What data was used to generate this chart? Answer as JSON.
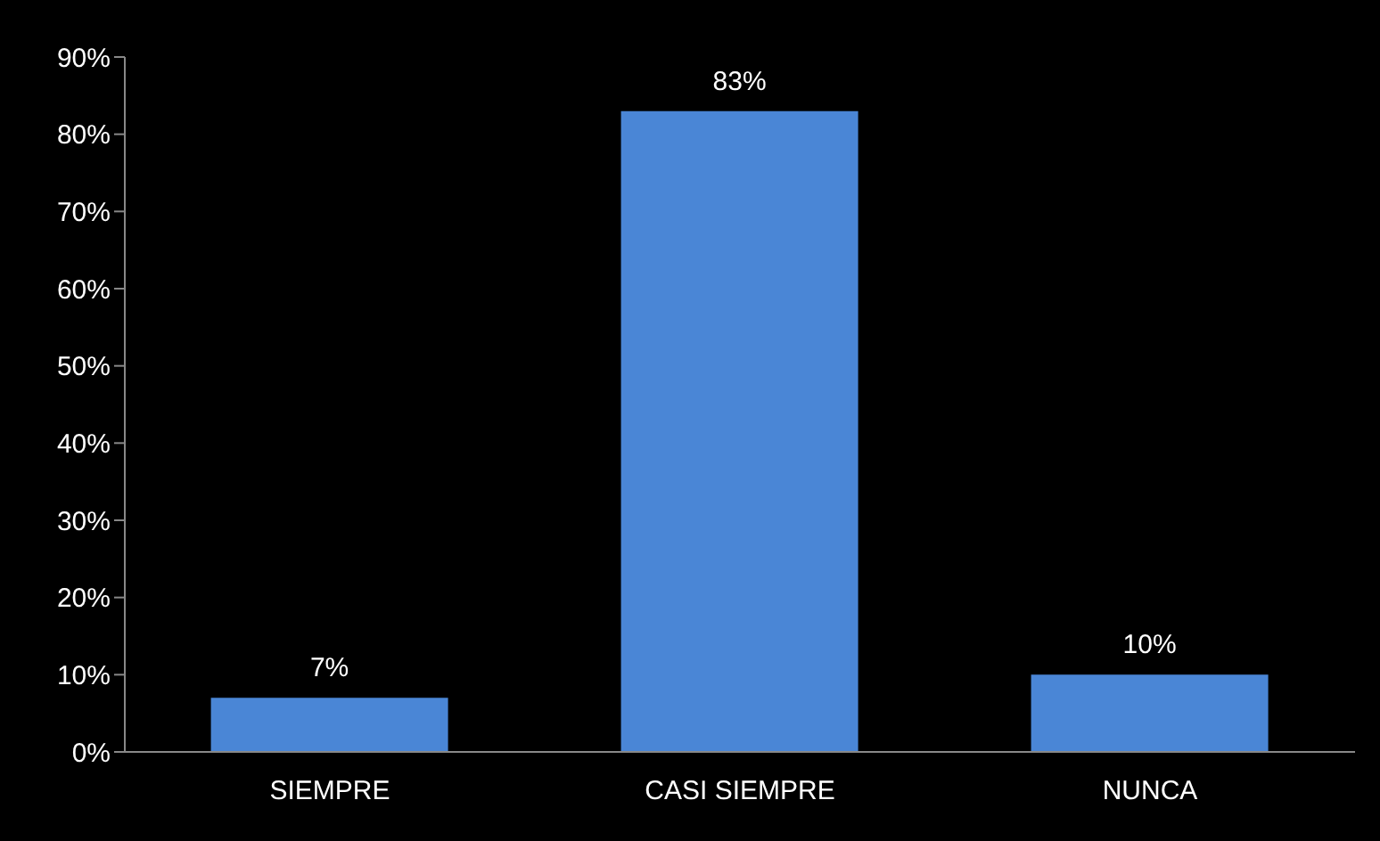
{
  "chart_data": {
    "type": "bar",
    "categories": [
      "SIEMPRE",
      "CASI SIEMPRE",
      "NUNCA"
    ],
    "values": [
      7,
      83,
      10
    ],
    "color": "#4a86d6",
    "value_labels": [
      "7%",
      "83%",
      "10%"
    ],
    "ylim": [
      0,
      90
    ],
    "yticks": [
      {
        "value": 0,
        "label": "0%"
      },
      {
        "value": 10,
        "label": "10%"
      },
      {
        "value": 20,
        "label": "20%"
      },
      {
        "value": 30,
        "label": "30%"
      },
      {
        "value": 40,
        "label": "40%"
      },
      {
        "value": 50,
        "label": "50%"
      },
      {
        "value": 60,
        "label": "60%"
      },
      {
        "value": 70,
        "label": "70%"
      },
      {
        "value": 80,
        "label": "80%"
      },
      {
        "value": 90,
        "label": "90%"
      }
    ],
    "grid": false,
    "legend": false
  }
}
